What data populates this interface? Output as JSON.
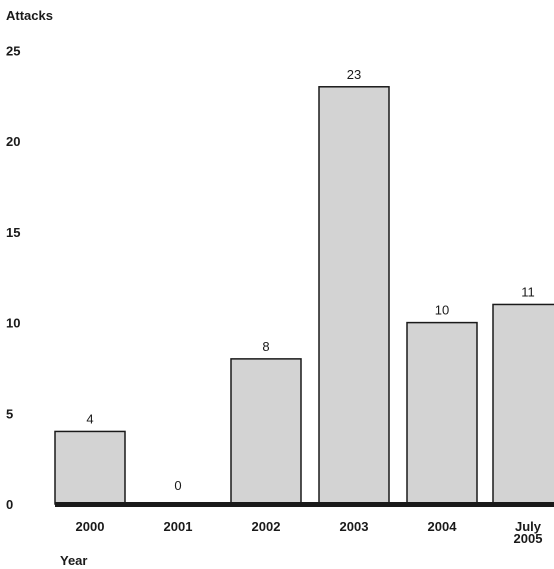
{
  "chart_data": {
    "type": "bar",
    "title": "",
    "ylabel": "Attacks",
    "xlabel": "Year",
    "categories": [
      [
        "2000"
      ],
      [
        "2001"
      ],
      [
        "2002"
      ],
      [
        "2003"
      ],
      [
        "2004"
      ],
      [
        "July",
        "2005"
      ]
    ],
    "values": [
      4,
      0,
      8,
      23,
      10,
      11
    ],
    "data_labels": [
      "4",
      "0",
      "8",
      "23",
      "10",
      "11"
    ],
    "ylim": [
      0,
      25
    ],
    "yticks": [
      0,
      5,
      10,
      15,
      20,
      25
    ],
    "ytick_labels": [
      "0",
      "5",
      "10",
      "15",
      "20",
      "25"
    ],
    "grid": false,
    "colors": {
      "bar_fill": "#d3d3d3",
      "bar_stroke": "#1a1a1a",
      "baseline": "#1a1a1a",
      "text": "#1a1a1a"
    }
  }
}
